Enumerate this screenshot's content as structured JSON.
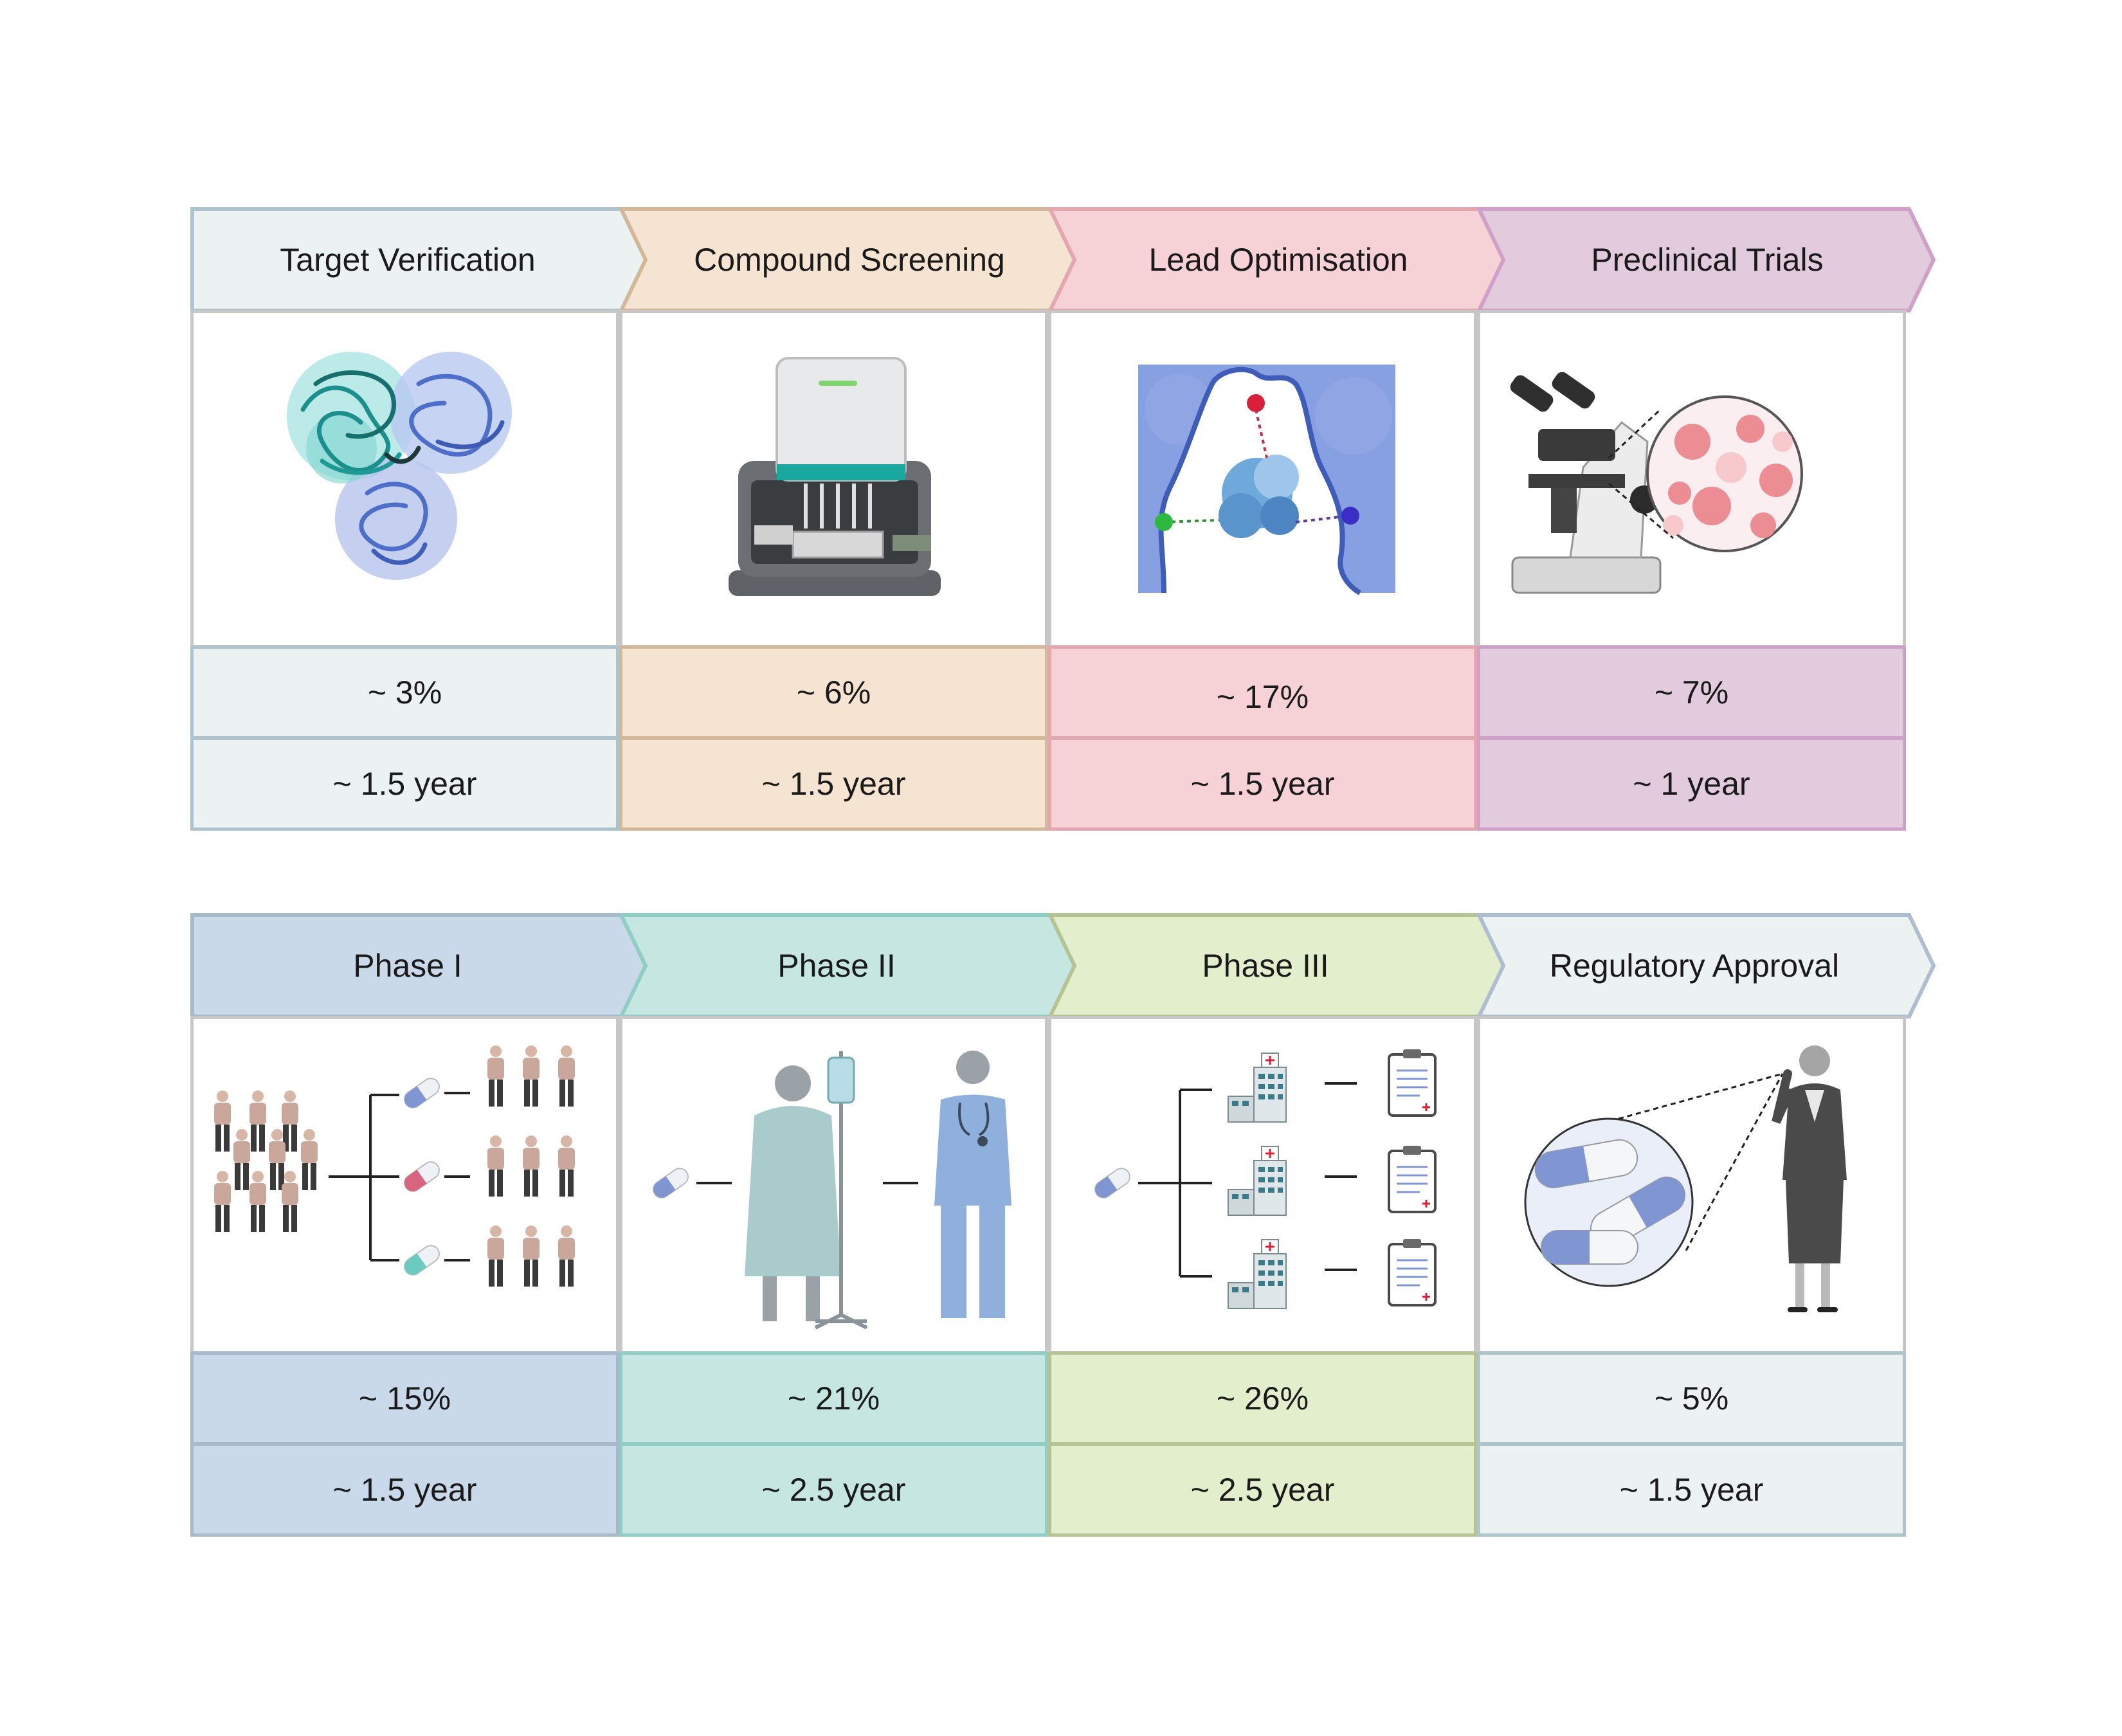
{
  "pipeline": {
    "row1": [
      {
        "title": "Target Verification",
        "percent": "~ 3%",
        "duration": "~ 1.5 year",
        "fill": "#ecf2f2",
        "border": "#aec4cc",
        "icon": "protein-structure-icon"
      },
      {
        "title": "Compound Screening",
        "percent": "~ 6%",
        "duration": "~ 1.5 year",
        "fill": "#f6e4d2",
        "border": "#d2b798",
        "icon": "screening-robot-icon"
      },
      {
        "title": "Lead Optimisation",
        "percent": "~ 17%",
        "duration": "~ 1.5 year",
        "fill": "#f6d1d6",
        "border": "#e3a7b0",
        "icon": "binding-pocket-icon"
      },
      {
        "title": "Preclinical Trials",
        "percent": "~ 7%",
        "duration": "~ 1 year",
        "fill": "#e1cbdc",
        "border": "#cfa1c9",
        "icon": "microscope-icon"
      }
    ],
    "row2": [
      {
        "title": "Phase I",
        "percent": "~ 15%",
        "duration": "~ 1.5 year",
        "fill": "#c9d9e9",
        "border": "#a8b9c9",
        "icon": "volunteer-groups-icon"
      },
      {
        "title": "Phase II",
        "percent": "~ 21%",
        "duration": "~ 2.5 year",
        "fill": "#c6e6e2",
        "border": "#8fcdc5",
        "icon": "patient-and-doctor-icon"
      },
      {
        "title": "Phase III",
        "percent": "~ 26%",
        "duration": "~ 2.5 year",
        "fill": "#e3eecd",
        "border": "#b6c394",
        "icon": "hospitals-records-icon"
      },
      {
        "title": "Regulatory Approval",
        "percent": "~ 5%",
        "duration": "~ 1.5 year",
        "fill": "#ecf2f2",
        "border": "#aebed0",
        "icon": "approval-official-icon"
      }
    ]
  },
  "colors": {
    "panel_border": "#c7c7c7",
    "capsule_blue": "#7f96d3",
    "capsule_pink": "#d9647e",
    "capsule_teal": "#6ccbc0",
    "person_shirt": "#c9a79a",
    "person_pants": "#3a3a3a"
  }
}
